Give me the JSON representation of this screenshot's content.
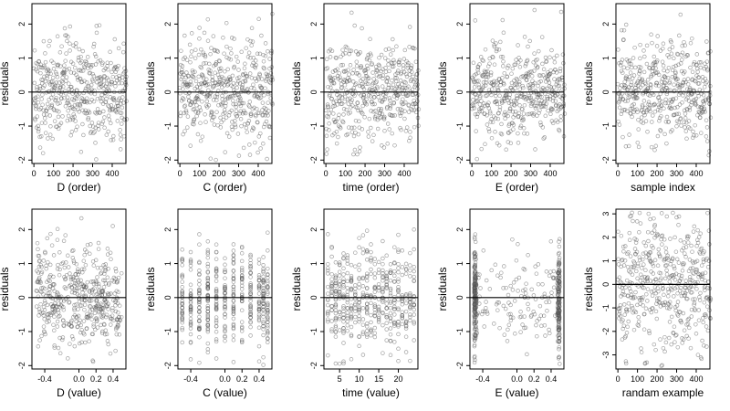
{
  "chart_data": [
    {
      "type": "scatter",
      "xlabel": "D (order)",
      "ylabel": "residuals",
      "xticks": [
        0,
        100,
        200,
        300,
        400
      ],
      "xlim": [
        -10,
        470
      ],
      "yticks": [
        -2,
        -1,
        0,
        1,
        2
      ],
      "ylim": [
        -2.1,
        2.6
      ],
      "reference_line_y": 0,
      "n": 475,
      "x_kind": "order"
    },
    {
      "type": "scatter",
      "xlabel": "C (order)",
      "ylabel": "residuals",
      "xticks": [
        0,
        100,
        200,
        300,
        400
      ],
      "xlim": [
        -10,
        470
      ],
      "yticks": [
        -2,
        -1,
        0,
        1,
        2
      ],
      "ylim": [
        -2.1,
        2.6
      ],
      "reference_line_y": 0,
      "n": 475,
      "x_kind": "order"
    },
    {
      "type": "scatter",
      "xlabel": "time (order)",
      "ylabel": "residuals",
      "xticks": [
        0,
        100,
        200,
        300,
        400
      ],
      "xlim": [
        -10,
        470
      ],
      "yticks": [
        -2,
        -1,
        0,
        1,
        2
      ],
      "ylim": [
        -2.1,
        2.6
      ],
      "reference_line_y": 0,
      "n": 475,
      "x_kind": "order"
    },
    {
      "type": "scatter",
      "xlabel": "E (order)",
      "ylabel": "residuals",
      "xticks": [
        0,
        100,
        200,
        300,
        400
      ],
      "xlim": [
        -10,
        470
      ],
      "yticks": [
        -2,
        -1,
        0,
        1,
        2
      ],
      "ylim": [
        -2.1,
        2.6
      ],
      "reference_line_y": 0,
      "n": 475,
      "x_kind": "order"
    },
    {
      "type": "scatter",
      "xlabel": "sample index",
      "ylabel": "residuals",
      "xticks": [
        0,
        100,
        200,
        300,
        400
      ],
      "xlim": [
        -10,
        470
      ],
      "yticks": [
        -2,
        -1,
        0,
        1,
        2
      ],
      "ylim": [
        -2.1,
        2.6
      ],
      "reference_line_y": 0,
      "n": 475,
      "x_kind": "order"
    },
    {
      "type": "scatter",
      "xlabel": "D (value)",
      "ylabel": "residuals",
      "xticks": [
        -0.4,
        0.0,
        0.2,
        0.4
      ],
      "xticklabels": [
        "-0.4",
        "0.0",
        "0.2",
        "0.4"
      ],
      "xlim": [
        -0.55,
        0.55
      ],
      "yticks": [
        -2,
        -1,
        0,
        1,
        2
      ],
      "ylim": [
        -2.1,
        2.6
      ],
      "reference_line_y": 0,
      "n": 475,
      "x_kind": "continuous",
      "x_range": [
        -0.5,
        0.5
      ]
    },
    {
      "type": "scatter",
      "xlabel": "C (value)",
      "ylabel": "residuals",
      "xticks": [
        -0.4,
        0.0,
        0.2,
        0.4
      ],
      "xticklabels": [
        "-0.4",
        "0.0",
        "0.2",
        "0.4"
      ],
      "xlim": [
        -0.55,
        0.55
      ],
      "yticks": [
        -2,
        -1,
        0,
        1,
        2
      ],
      "ylim": [
        -2.1,
        2.6
      ],
      "reference_line_y": 0,
      "n": 475,
      "x_kind": "discrete",
      "x_levels": [
        -0.5,
        -0.4,
        -0.3,
        -0.2,
        -0.1,
        0.0,
        0.1,
        0.2,
        0.3,
        0.4,
        0.45,
        0.5
      ]
    },
    {
      "type": "scatter",
      "xlabel": "time (value)",
      "ylabel": "residuals",
      "xticks": [
        5,
        10,
        15,
        20
      ],
      "xlim": [
        1,
        25
      ],
      "yticks": [
        -2,
        -1,
        0,
        1,
        2
      ],
      "ylim": [
        -2.1,
        2.6
      ],
      "reference_line_y": 0,
      "n": 475,
      "x_kind": "discrete",
      "x_levels": [
        2,
        3,
        4,
        5,
        6,
        7,
        8,
        9,
        10,
        11,
        12,
        13,
        14,
        15,
        16,
        17,
        18,
        19,
        20,
        21,
        22,
        23,
        24
      ]
    },
    {
      "type": "scatter",
      "xlabel": "E (value)",
      "ylabel": "residuals",
      "xticks": [
        -0.4,
        0.0,
        0.2,
        0.4
      ],
      "xticklabels": [
        "-0.4",
        "0.0",
        "0.2",
        "0.4"
      ],
      "xlim": [
        -0.55,
        0.55
      ],
      "yticks": [
        -2,
        -1,
        0,
        1,
        2
      ],
      "ylim": [
        -2.1,
        2.6
      ],
      "reference_line_y": 0,
      "n": 475,
      "x_kind": "bimodal",
      "x_range": [
        -0.5,
        0.5
      ]
    },
    {
      "type": "scatter",
      "xlabel": "randam example",
      "ylabel": "residuals",
      "xticks": [
        0,
        100,
        200,
        300,
        400
      ],
      "xlim": [
        -10,
        470
      ],
      "yticks": [
        -3,
        -2,
        -1,
        0,
        1,
        2,
        3
      ],
      "ylim": [
        -3.6,
        3.2
      ],
      "reference_line_y": 0,
      "n": 475,
      "x_kind": "order",
      "y_scale": 1.4
    }
  ]
}
